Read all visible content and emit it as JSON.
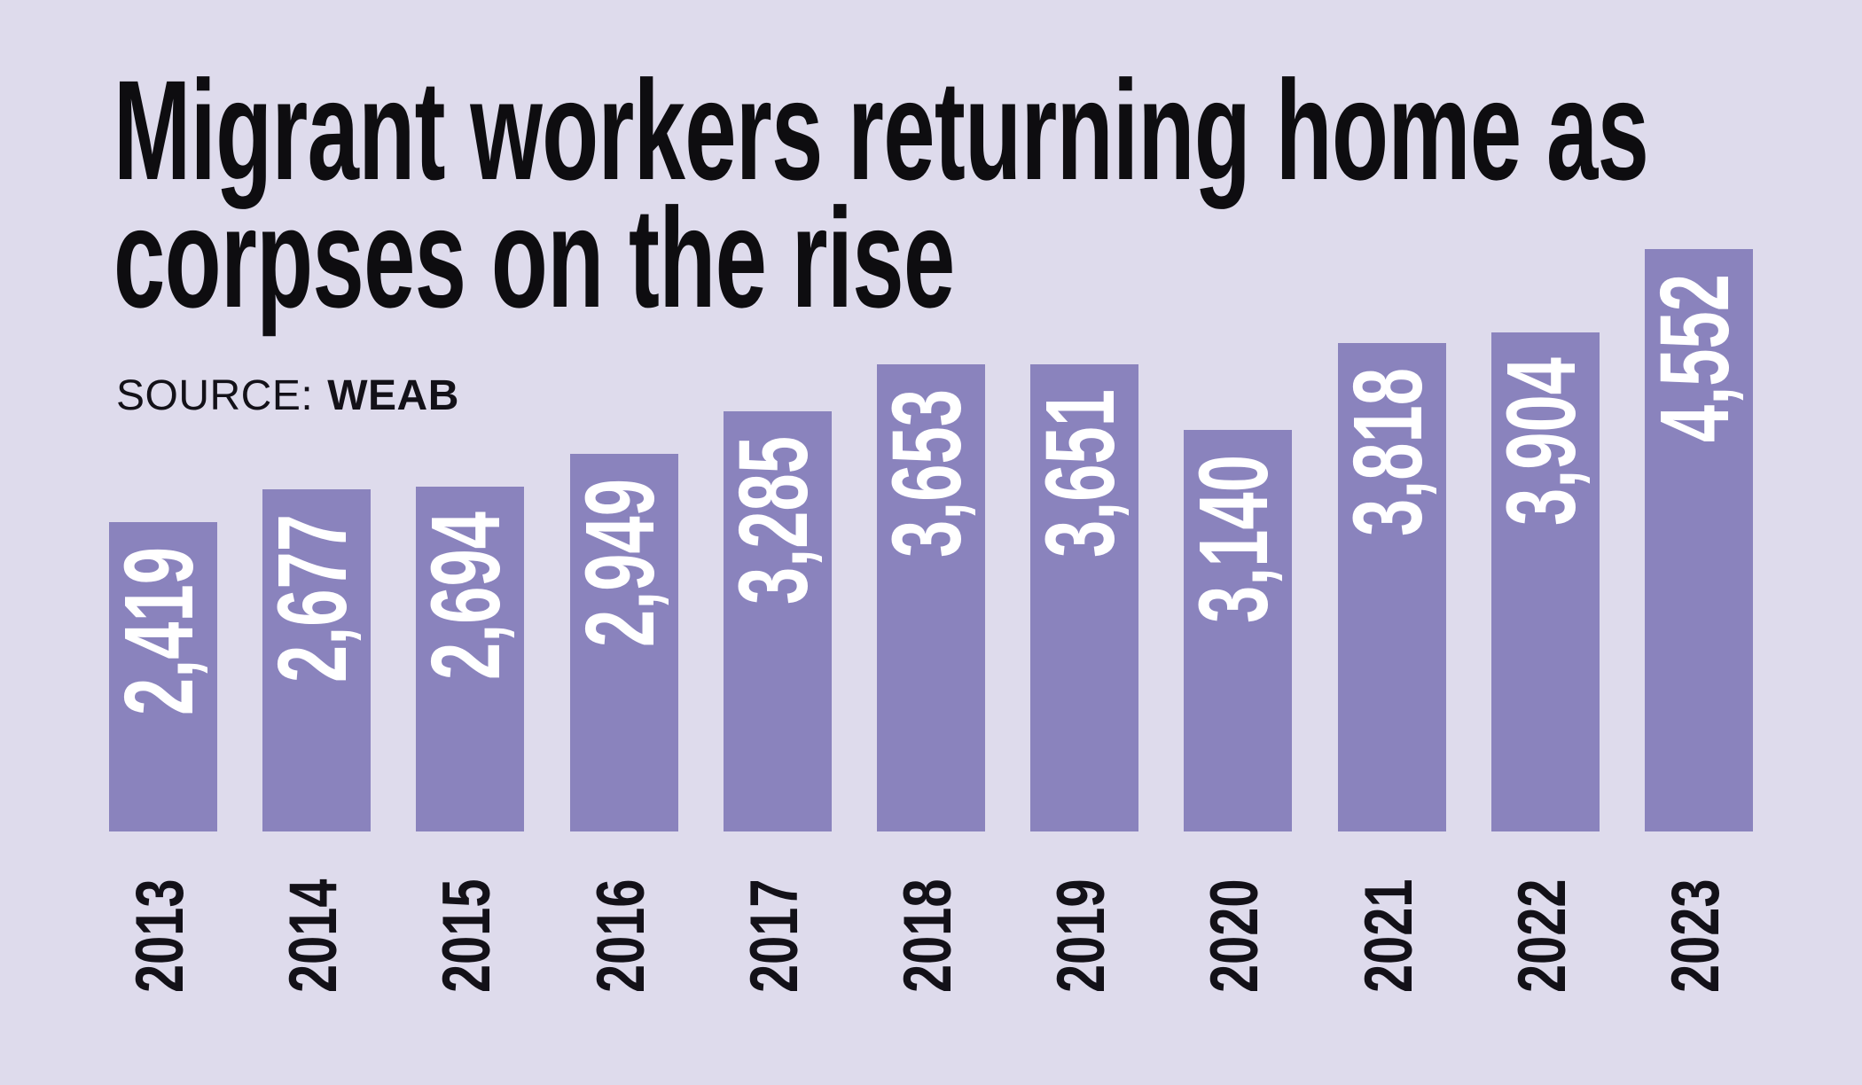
{
  "title": "Migrant workers returning home as corpses on the rise",
  "title_lines": [
    "Migrant workers returning home as",
    "corpses on the rise"
  ],
  "source": {
    "label": "SOURCE:",
    "value": "WEAB"
  },
  "colors": {
    "background": "#dedbec",
    "bar": "#8a83bd",
    "title_text": "#0e0d10",
    "axis_text": "#131118",
    "bar_value_text": "#ffffff"
  },
  "chart_data": {
    "type": "bar",
    "orientation": "vertical",
    "title": "Migrant workers returning home as corpses on the rise",
    "xlabel": "",
    "ylabel": "",
    "categories": [
      "2013",
      "2014",
      "2015",
      "2016",
      "2017",
      "2018",
      "2019",
      "2020",
      "2021",
      "2022",
      "2023"
    ],
    "values": [
      2419,
      2677,
      2694,
      2949,
      3285,
      3653,
      3651,
      3140,
      3818,
      3904,
      4552
    ],
    "value_labels": [
      "2,419",
      "2,677",
      "2,694",
      "2,949",
      "3,285",
      "3,653",
      "3,651",
      "3,140",
      "3,818",
      "3,904",
      "4,552"
    ],
    "ylim": [
      0,
      4552
    ],
    "grid": false,
    "legend": false,
    "axes_drawn": false,
    "bar_color": "#8a83bd",
    "value_label_color": "#ffffff",
    "value_label_rotation": -90,
    "tick_label_rotation": -90
  }
}
